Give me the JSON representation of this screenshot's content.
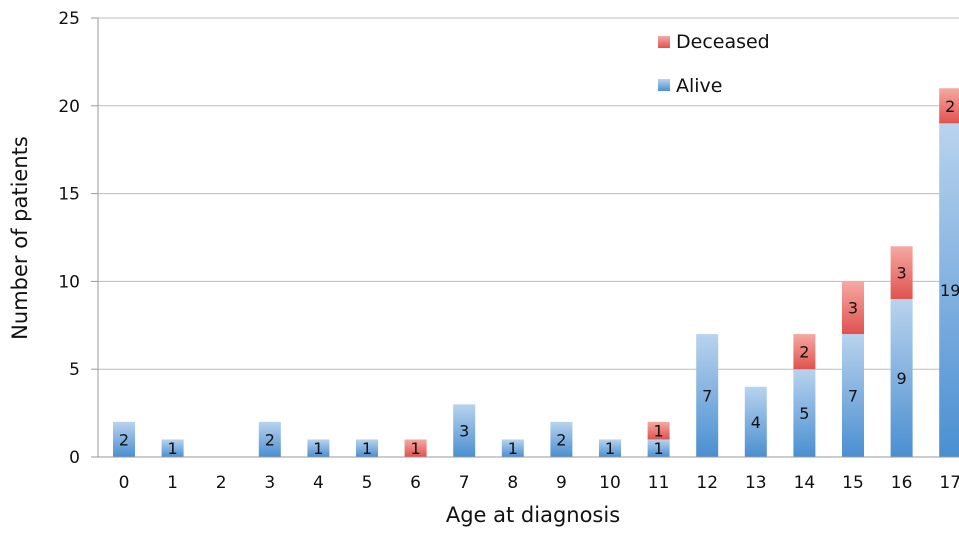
{
  "chart_data": {
    "type": "bar",
    "stacked": true,
    "title": "",
    "xlabel": "Age at diagnosis",
    "ylabel": "Number of patients",
    "categories": [
      "0",
      "1",
      "2",
      "3",
      "4",
      "5",
      "6",
      "7",
      "8",
      "9",
      "10",
      "11",
      "12",
      "13",
      "14",
      "15",
      "16",
      "17"
    ],
    "series": [
      {
        "name": "Alive",
        "values": [
          2,
          1,
          0,
          2,
          1,
          1,
          0,
          3,
          1,
          2,
          1,
          1,
          7,
          4,
          5,
          7,
          9,
          19
        ],
        "color": "#5b9bd5"
      },
      {
        "name": "Deceased",
        "values": [
          0,
          0,
          0,
          0,
          0,
          0,
          1,
          0,
          0,
          0,
          0,
          1,
          0,
          0,
          2,
          3,
          3,
          2
        ],
        "color": "#e8605c"
      }
    ],
    "data_labels": {
      "Alive": [
        "2",
        "1",
        "",
        "2",
        "1",
        "1",
        "",
        "3",
        "1",
        "2",
        "1",
        "1",
        "7",
        "4",
        "5",
        "7",
        "9",
        "19"
      ],
      "Deceased": [
        "",
        "",
        "",
        "",
        "",
        "",
        "1",
        "",
        "",
        "",
        "",
        "1",
        "",
        "",
        "2",
        "3",
        "3",
        "2"
      ]
    },
    "ylim": [
      0,
      25
    ],
    "yticks": [
      "0",
      "5",
      "10",
      "15",
      "20",
      "25"
    ],
    "grid": true,
    "legend_position": "top-right",
    "legend": [
      "Deceased",
      "Alive"
    ]
  }
}
